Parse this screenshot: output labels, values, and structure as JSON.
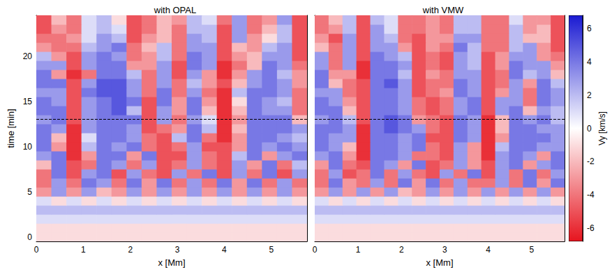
{
  "chart_data": [
    {
      "type": "heatmap",
      "title": "with OPAL",
      "x_label": "x [Mm]",
      "y_label": "time [min]",
      "xlim": [
        0,
        5.76
      ],
      "ylim": [
        -0.5,
        24.5
      ],
      "xticks": [
        0,
        1,
        2,
        3,
        4,
        5
      ],
      "yticks": [
        0,
        5,
        10,
        15,
        20
      ],
      "hline": 13,
      "cells": {
        "x": [
          0.16,
          0.48,
          0.8,
          1.12,
          1.44,
          1.76,
          2.08,
          2.4,
          2.72,
          3.04,
          3.36,
          3.68,
          4.0,
          4.32,
          4.64,
          4.96,
          5.28,
          5.6
        ],
        "y": [
          0,
          1,
          2,
          3,
          4,
          5,
          6,
          7,
          8,
          9,
          10,
          11,
          12,
          13,
          14,
          15,
          16,
          17,
          18,
          19,
          20,
          21,
          22,
          23,
          24
        ],
        "values": [
          [
            -1,
            -1,
            -1,
            -1,
            -1,
            -1,
            -1,
            -1,
            -1,
            -1,
            -1,
            -1,
            -1,
            -1,
            -1,
            -1,
            -1,
            -1
          ],
          [
            -1,
            -1,
            -1,
            -1,
            -1,
            -1,
            -1,
            -1,
            -1,
            -1,
            -1,
            -1,
            -1,
            -1,
            -1,
            -1,
            -1,
            -1
          ],
          [
            1,
            1,
            1,
            1,
            1,
            1,
            1,
            1,
            1,
            1,
            1,
            1,
            1,
            1,
            1,
            1,
            1,
            1
          ],
          [
            2,
            2,
            2,
            2,
            2,
            2,
            2,
            2,
            2,
            2,
            2,
            2,
            2,
            2,
            2,
            2,
            2,
            2
          ],
          [
            1,
            -1,
            1,
            -1,
            1,
            -1,
            1,
            -1,
            1,
            -1,
            1,
            -1,
            1,
            -1,
            1,
            -1,
            1,
            -1
          ],
          [
            -3,
            3,
            -3,
            3,
            -2,
            -3,
            3,
            -3,
            3,
            -3,
            3,
            -3,
            3,
            -3,
            3,
            -3,
            3,
            -3
          ],
          [
            -4,
            3,
            -4,
            4,
            3,
            -4,
            4,
            -3,
            4,
            -4,
            3,
            -4,
            4,
            -3,
            4,
            -4,
            3,
            -4
          ],
          [
            -4,
            4,
            -5,
            3,
            4,
            -5,
            3,
            -4,
            -5,
            3,
            -4,
            4,
            -5,
            3,
            -4,
            4,
            -5,
            3
          ],
          [
            -2,
            4,
            -5,
            -4,
            4,
            3,
            -4,
            3,
            -5,
            -4,
            3,
            -4,
            -5,
            3,
            -3,
            4,
            -4,
            2
          ],
          [
            3,
            4,
            -6,
            -3,
            4,
            4,
            -3,
            4,
            -5,
            -5,
            3,
            -4,
            -5,
            2,
            4,
            -3,
            3,
            4
          ],
          [
            4,
            -3,
            -6,
            2,
            4,
            3,
            4,
            -4,
            -5,
            -4,
            3,
            -5,
            -5,
            -3,
            4,
            3,
            4,
            3
          ],
          [
            4,
            -2,
            -6,
            1,
            4,
            4,
            3,
            -4,
            -5,
            2,
            4,
            -4,
            -6,
            -3,
            4,
            4,
            3,
            2
          ],
          [
            4,
            3,
            -6,
            3,
            4,
            4,
            3,
            -5,
            -4,
            -3,
            4,
            2,
            -6,
            -2,
            4,
            4,
            4,
            3
          ],
          [
            3,
            4,
            -5,
            3,
            4,
            4,
            4,
            -5,
            3,
            -4,
            3,
            1,
            -6,
            -3,
            4,
            4,
            4,
            -2
          ],
          [
            4,
            4,
            -5,
            3,
            4,
            5,
            2,
            -5,
            3,
            -3,
            4,
            -2,
            -6,
            -2,
            4,
            3,
            3,
            -4
          ],
          [
            4,
            3,
            -5,
            3,
            4,
            5,
            4,
            -5,
            4,
            -3,
            4,
            -3,
            -6,
            -1,
            4,
            3,
            2,
            -4
          ],
          [
            3,
            3,
            -5,
            4,
            5,
            5,
            3,
            -4,
            4,
            -4,
            3,
            -4,
            -6,
            2,
            4,
            4,
            3,
            -4
          ],
          [
            4,
            4,
            -5,
            3,
            5,
            5,
            3,
            -4,
            3,
            -4,
            2,
            -3,
            -5,
            -2,
            3,
            4,
            3,
            -3
          ],
          [
            4,
            -3,
            -6,
            -4,
            4,
            4,
            2,
            -4,
            3,
            -5,
            3,
            -3,
            -6,
            -3,
            3,
            4,
            2,
            -3
          ],
          [
            3,
            3,
            -5,
            3,
            4,
            4,
            -3,
            -3,
            3,
            -5,
            4,
            3,
            -6,
            -4,
            -2,
            4,
            3,
            -4
          ],
          [
            2,
            -3,
            -5,
            3,
            4,
            3,
            -4,
            -3,
            2,
            -4,
            4,
            3,
            -5,
            -3,
            -2,
            3,
            3,
            -5
          ],
          [
            -3,
            -4,
            -4,
            2,
            3,
            4,
            -4,
            -2,
            2,
            -4,
            3,
            3,
            -5,
            -2,
            -3,
            2,
            3,
            -5
          ],
          [
            -4,
            -4,
            -3,
            1,
            3,
            2,
            -5,
            -3,
            -2,
            -4,
            3,
            2,
            -5,
            3,
            -3,
            -1,
            2,
            -5
          ],
          [
            -5,
            -3,
            -4,
            1,
            2,
            1,
            -5,
            -4,
            -2,
            -4,
            2,
            2,
            -5,
            3,
            -4,
            -2,
            2,
            -5
          ],
          [
            -5,
            -2,
            -4,
            1,
            2,
            -1,
            -5,
            -4,
            -2,
            -3,
            2,
            1,
            -4,
            3,
            -4,
            -3,
            3,
            -5
          ]
        ]
      }
    },
    {
      "type": "heatmap",
      "title": "with VMW",
      "x_label": "x [Mm]",
      "xlim": [
        0,
        5.76
      ],
      "ylim": [
        -0.5,
        24.5
      ],
      "xticks": [
        0,
        1,
        2,
        3,
        4,
        5
      ],
      "yticks": [
        0,
        5,
        10,
        15,
        20
      ],
      "tick_labels": "x",
      "hline": 13,
      "cells": {
        "x": [
          0.16,
          0.48,
          0.8,
          1.12,
          1.44,
          1.76,
          2.08,
          2.4,
          2.72,
          3.04,
          3.36,
          3.68,
          4.0,
          4.32,
          4.64,
          4.96,
          5.28,
          5.6
        ],
        "y": [
          0,
          1,
          2,
          3,
          4,
          5,
          6,
          7,
          8,
          9,
          10,
          11,
          12,
          13,
          14,
          15,
          16,
          17,
          18,
          19,
          20,
          21,
          22,
          23,
          24
        ],
        "values": [
          [
            -1,
            -1,
            -1,
            -1,
            -1,
            -1,
            -1,
            -1,
            -1,
            -1,
            -1,
            -1,
            -1,
            -1,
            -1,
            -1,
            -1,
            -1
          ],
          [
            -1,
            -1,
            -1,
            -1,
            -1,
            -1,
            -1,
            -1,
            -1,
            -1,
            -1,
            -1,
            -1,
            -1,
            -1,
            -1,
            -1,
            -1
          ],
          [
            1,
            1,
            1,
            1,
            1,
            1,
            1,
            1,
            1,
            1,
            1,
            1,
            1,
            1,
            1,
            1,
            1,
            1
          ],
          [
            2,
            2,
            2,
            2,
            2,
            2,
            2,
            2,
            2,
            2,
            2,
            2,
            2,
            2,
            2,
            2,
            2,
            2
          ],
          [
            1,
            -1,
            1,
            -1,
            1,
            -1,
            1,
            -1,
            1,
            -1,
            1,
            -1,
            1,
            -1,
            1,
            -1,
            1,
            -1
          ],
          [
            -3,
            3,
            -3,
            3,
            -3,
            3,
            -2,
            -3,
            3,
            -3,
            3,
            -3,
            3,
            -3,
            3,
            -3,
            3,
            -3
          ],
          [
            -4,
            4,
            -3,
            -4,
            3,
            -4,
            4,
            -3,
            4,
            -4,
            3,
            -4,
            -4,
            3,
            -4,
            4,
            -3,
            4
          ],
          [
            -4,
            3,
            -5,
            -4,
            4,
            -4,
            3,
            -4,
            -5,
            3,
            -4,
            4,
            -5,
            3,
            -4,
            4,
            -4,
            3
          ],
          [
            -3,
            4,
            -4,
            -5,
            4,
            3,
            -3,
            4,
            -5,
            -4,
            3,
            -3,
            -5,
            3,
            4,
            -3,
            3,
            4
          ],
          [
            3,
            4,
            -3,
            -6,
            4,
            4,
            3,
            -4,
            -4,
            -5,
            3,
            -3,
            -6,
            3,
            4,
            3,
            -3,
            4
          ],
          [
            4,
            3,
            -2,
            -6,
            4,
            4,
            3,
            4,
            -4,
            -5,
            3,
            -3,
            -6,
            2,
            4,
            4,
            3,
            3
          ],
          [
            4,
            3,
            3,
            -6,
            4,
            4,
            3,
            4,
            -5,
            -5,
            4,
            3,
            -6,
            -3,
            4,
            4,
            4,
            3
          ],
          [
            4,
            4,
            3,
            -6,
            4,
            5,
            4,
            3,
            -4,
            -5,
            4,
            3,
            -6,
            -2,
            4,
            4,
            3,
            3
          ],
          [
            3,
            4,
            2,
            -5,
            4,
            5,
            4,
            -3,
            -4,
            -5,
            4,
            3,
            -6,
            -2,
            4,
            3,
            4,
            2
          ],
          [
            4,
            4,
            -2,
            -5,
            4,
            4,
            3,
            -4,
            -5,
            -4,
            3,
            4,
            -5,
            3,
            4,
            -2,
            3,
            2
          ],
          [
            4,
            3,
            -3,
            -5,
            4,
            4,
            3,
            -4,
            -5,
            -4,
            3,
            4,
            -5,
            3,
            3,
            -4,
            4,
            3
          ],
          [
            3,
            3,
            -4,
            -5,
            4,
            4,
            3,
            -5,
            -4,
            -3,
            4,
            3,
            -5,
            -3,
            3,
            -4,
            4,
            3
          ],
          [
            4,
            -2,
            -4,
            -5,
            4,
            5,
            3,
            -5,
            -4,
            -4,
            4,
            3,
            -5,
            -4,
            3,
            -3,
            4,
            2
          ],
          [
            4,
            -3,
            -3,
            -6,
            4,
            4,
            2,
            -5,
            -3,
            -4,
            3,
            3,
            -5,
            -4,
            4,
            2,
            3,
            -2
          ],
          [
            3,
            -4,
            3,
            -6,
            4,
            4,
            3,
            -5,
            -4,
            -5,
            3,
            2,
            -5,
            -3,
            4,
            3,
            3,
            -3
          ],
          [
            3,
            -4,
            3,
            -5,
            4,
            3,
            2,
            -5,
            -4,
            -5,
            3,
            2,
            -5,
            -3,
            3,
            3,
            -3,
            -4
          ],
          [
            -2,
            -4,
            3,
            -5,
            3,
            3,
            -3,
            -5,
            -3,
            -4,
            4,
            2,
            -4,
            -4,
            2,
            3,
            -3,
            -5
          ],
          [
            -3,
            -5,
            3,
            -5,
            3,
            2,
            -4,
            -5,
            -3,
            -3,
            3,
            3,
            -4,
            -4,
            2,
            -2,
            -2,
            -5
          ],
          [
            -4,
            -3,
            2,
            -5,
            3,
            1,
            -4,
            -4,
            -3,
            -4,
            2,
            2,
            -4,
            -4,
            2,
            -3,
            -2,
            -5
          ],
          [
            -4,
            -2,
            2,
            -5,
            2,
            1,
            -4,
            -4,
            -3,
            -4,
            2,
            2,
            -4,
            -4,
            1,
            -3,
            -3,
            -5
          ]
        ]
      }
    }
  ],
  "colorbar": {
    "label": "Vy [km/s]",
    "range": [
      -6.8,
      6.8
    ],
    "ticks": [
      -6,
      -4,
      -2,
      0,
      2,
      4,
      6
    ],
    "colors": [
      "#e6141e",
      "#ffffff",
      "#1a1ad2"
    ]
  }
}
